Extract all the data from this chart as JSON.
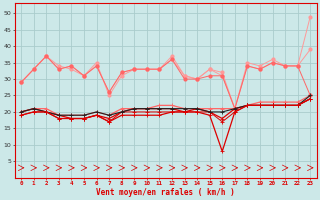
{
  "x": [
    0,
    1,
    2,
    3,
    4,
    5,
    6,
    7,
    8,
    9,
    10,
    11,
    12,
    13,
    14,
    15,
    16,
    17,
    18,
    19,
    20,
    21,
    22,
    23
  ],
  "line_top_upper": [
    29,
    33,
    37,
    34,
    33,
    31,
    35,
    25,
    31,
    33,
    33,
    33,
    37,
    31,
    30,
    33,
    31,
    21,
    35,
    34,
    36,
    34,
    34,
    49
  ],
  "line_top_mid": [
    29,
    33,
    37,
    33,
    34,
    31,
    34,
    26,
    32,
    33,
    33,
    33,
    36,
    31,
    30,
    33,
    32,
    21,
    34,
    33,
    35,
    34,
    34,
    39
  ],
  "line_top_low": [
    29,
    33,
    37,
    33,
    34,
    31,
    34,
    26,
    32,
    33,
    33,
    33,
    36,
    30,
    30,
    31,
    31,
    21,
    34,
    33,
    35,
    34,
    34,
    25
  ],
  "line_mid_upper": [
    20,
    21,
    21,
    19,
    19,
    19,
    20,
    19,
    21,
    21,
    21,
    22,
    22,
    21,
    21,
    21,
    21,
    21,
    22,
    23,
    23,
    23,
    23,
    25
  ],
  "line_mid_mid": [
    20,
    21,
    20,
    19,
    19,
    19,
    20,
    19,
    20,
    21,
    21,
    21,
    21,
    21,
    21,
    20,
    20,
    21,
    22,
    22,
    22,
    22,
    22,
    25
  ],
  "line_mid_low1": [
    20,
    21,
    20,
    19,
    18,
    18,
    19,
    18,
    20,
    21,
    21,
    21,
    21,
    20,
    21,
    20,
    18,
    21,
    22,
    22,
    22,
    22,
    22,
    24
  ],
  "line_mid_low2": [
    19,
    20,
    20,
    18,
    18,
    18,
    19,
    17,
    20,
    20,
    20,
    20,
    20,
    20,
    20,
    20,
    17,
    20,
    22,
    22,
    22,
    22,
    22,
    24
  ],
  "line_bot": [
    19,
    20,
    20,
    18,
    18,
    18,
    19,
    17,
    19,
    19,
    19,
    19,
    20,
    20,
    20,
    19,
    8,
    20,
    22,
    22,
    22,
    22,
    22,
    24
  ],
  "bg_color": "#cce8e8",
  "grid_color": "#aacccc",
  "col_light": "#ff9999",
  "col_mid": "#ff6666",
  "col_dark": "#dd0000",
  "col_black": "#222222",
  "xlabel": "Vent moyen/en rafales ( km/h )",
  "ylim": [
    0,
    53
  ],
  "xlim": [
    -0.5,
    23.5
  ],
  "yticks": [
    5,
    10,
    15,
    20,
    25,
    30,
    35,
    40,
    45,
    50
  ],
  "xticks": [
    0,
    1,
    2,
    3,
    4,
    5,
    6,
    7,
    8,
    9,
    10,
    11,
    12,
    13,
    14,
    15,
    16,
    17,
    18,
    19,
    20,
    21,
    22,
    23
  ]
}
